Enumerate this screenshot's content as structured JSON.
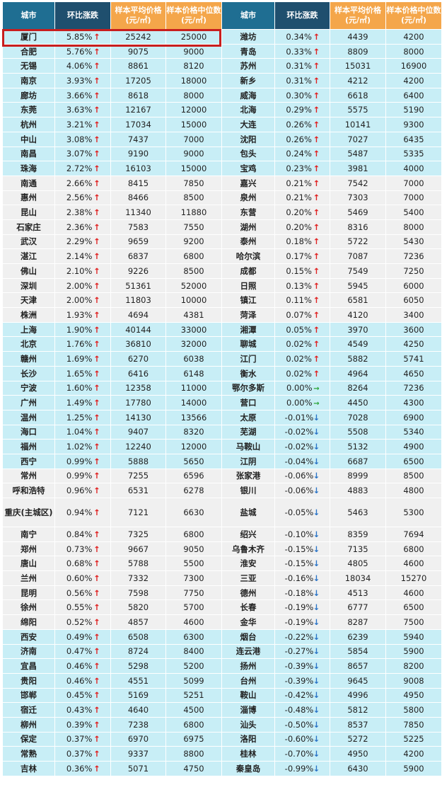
{
  "header": {
    "city": "城市",
    "change": "环比涨跌",
    "avg_price": "样本平均价格(元/㎡)",
    "median_price": "样本价格中位数(元/㎡)"
  },
  "colors": {
    "header_city": "#1f6e92",
    "header_change": "#1f4f6e",
    "header_price": "#f4a64a",
    "band_cyan": "#c8eef6",
    "band_gray": "#f0f0f0",
    "up_arrow": "#e02020",
    "down_arrow": "#2a74c7",
    "flat_arrow": "#2aa538",
    "highlight_box": "#c81e1e"
  },
  "arrows": {
    "up": "↑",
    "down": "↓",
    "flat": "→"
  },
  "highlight": {
    "row": "厦门"
  },
  "left_rows": [
    {
      "city": "厦门",
      "pct": "5.85%",
      "dir": "up",
      "avg": "25242",
      "med": "25000"
    },
    {
      "city": "合肥",
      "pct": "5.76%",
      "dir": "up",
      "avg": "9075",
      "med": "9000"
    },
    {
      "city": "无锡",
      "pct": "4.06%",
      "dir": "up",
      "avg": "8861",
      "med": "8120"
    },
    {
      "city": "南京",
      "pct": "3.93%",
      "dir": "up",
      "avg": "17205",
      "med": "18000"
    },
    {
      "city": "廊坊",
      "pct": "3.66%",
      "dir": "up",
      "avg": "8618",
      "med": "8000"
    },
    {
      "city": "东莞",
      "pct": "3.63%",
      "dir": "up",
      "avg": "12167",
      "med": "12000"
    },
    {
      "city": "杭州",
      "pct": "3.21%",
      "dir": "up",
      "avg": "17034",
      "med": "15000"
    },
    {
      "city": "中山",
      "pct": "3.08%",
      "dir": "up",
      "avg": "7437",
      "med": "7000"
    },
    {
      "city": "南昌",
      "pct": "3.07%",
      "dir": "up",
      "avg": "9190",
      "med": "9000"
    },
    {
      "city": "珠海",
      "pct": "2.72%",
      "dir": "up",
      "avg": "16103",
      "med": "15000"
    },
    {
      "city": "南通",
      "pct": "2.66%",
      "dir": "up",
      "avg": "8415",
      "med": "7850"
    },
    {
      "city": "惠州",
      "pct": "2.56%",
      "dir": "up",
      "avg": "8466",
      "med": "8500"
    },
    {
      "city": "昆山",
      "pct": "2.38%",
      "dir": "up",
      "avg": "11340",
      "med": "11880"
    },
    {
      "city": "石家庄",
      "pct": "2.36%",
      "dir": "up",
      "avg": "7583",
      "med": "7550"
    },
    {
      "city": "武汉",
      "pct": "2.29%",
      "dir": "up",
      "avg": "9659",
      "med": "9200"
    },
    {
      "city": "湛江",
      "pct": "2.14%",
      "dir": "up",
      "avg": "6837",
      "med": "6800"
    },
    {
      "city": "佛山",
      "pct": "2.10%",
      "dir": "up",
      "avg": "9226",
      "med": "8500"
    },
    {
      "city": "深圳",
      "pct": "2.00%",
      "dir": "up",
      "avg": "51361",
      "med": "52000"
    },
    {
      "city": "天津",
      "pct": "2.00%",
      "dir": "up",
      "avg": "11803",
      "med": "10000"
    },
    {
      "city": "株洲",
      "pct": "1.93%",
      "dir": "up",
      "avg": "4694",
      "med": "4381"
    },
    {
      "city": "上海",
      "pct": "1.90%",
      "dir": "up",
      "avg": "40144",
      "med": "33000"
    },
    {
      "city": "北京",
      "pct": "1.76%",
      "dir": "up",
      "avg": "36810",
      "med": "32000"
    },
    {
      "city": "赣州",
      "pct": "1.69%",
      "dir": "up",
      "avg": "6270",
      "med": "6038"
    },
    {
      "city": "长沙",
      "pct": "1.65%",
      "dir": "up",
      "avg": "6416",
      "med": "6148"
    },
    {
      "city": "宁波",
      "pct": "1.60%",
      "dir": "up",
      "avg": "12358",
      "med": "11000"
    },
    {
      "city": "广州",
      "pct": "1.49%",
      "dir": "up",
      "avg": "17780",
      "med": "14000"
    },
    {
      "city": "温州",
      "pct": "1.25%",
      "dir": "up",
      "avg": "14130",
      "med": "13566"
    },
    {
      "city": "海口",
      "pct": "1.04%",
      "dir": "up",
      "avg": "9407",
      "med": "8320"
    },
    {
      "city": "福州",
      "pct": "1.02%",
      "dir": "up",
      "avg": "12240",
      "med": "12000"
    },
    {
      "city": "西宁",
      "pct": "0.99%",
      "dir": "up",
      "avg": "5888",
      "med": "5650"
    },
    {
      "city": "常州",
      "pct": "0.99%",
      "dir": "up",
      "avg": "7255",
      "med": "6596"
    },
    {
      "city": "呼和浩特",
      "pct": "0.96%",
      "dir": "up",
      "avg": "6531",
      "med": "6278"
    },
    {
      "city": "重庆(主城区)",
      "pct": "0.94%",
      "dir": "up",
      "avg": "7121",
      "med": "6630"
    },
    {
      "city": "南宁",
      "pct": "0.84%",
      "dir": "up",
      "avg": "7325",
      "med": "6800"
    },
    {
      "city": "郑州",
      "pct": "0.73%",
      "dir": "up",
      "avg": "9667",
      "med": "9050"
    },
    {
      "city": "唐山",
      "pct": "0.68%",
      "dir": "up",
      "avg": "5788",
      "med": "5500"
    },
    {
      "city": "兰州",
      "pct": "0.60%",
      "dir": "up",
      "avg": "7332",
      "med": "7300"
    },
    {
      "city": "昆明",
      "pct": "0.56%",
      "dir": "up",
      "avg": "7598",
      "med": "7750"
    },
    {
      "city": "徐州",
      "pct": "0.55%",
      "dir": "up",
      "avg": "5820",
      "med": "5700"
    },
    {
      "city": "绵阳",
      "pct": "0.52%",
      "dir": "up",
      "avg": "4857",
      "med": "4600"
    },
    {
      "city": "西安",
      "pct": "0.49%",
      "dir": "up",
      "avg": "6508",
      "med": "6300"
    },
    {
      "city": "济南",
      "pct": "0.47%",
      "dir": "up",
      "avg": "8724",
      "med": "8400"
    },
    {
      "city": "宜昌",
      "pct": "0.46%",
      "dir": "up",
      "avg": "5298",
      "med": "5200"
    },
    {
      "city": "贵阳",
      "pct": "0.46%",
      "dir": "up",
      "avg": "4551",
      "med": "5099"
    },
    {
      "city": "邯郸",
      "pct": "0.45%",
      "dir": "up",
      "avg": "5169",
      "med": "5251"
    },
    {
      "city": "宿迁",
      "pct": "0.43%",
      "dir": "up",
      "avg": "4640",
      "med": "4500"
    },
    {
      "city": "柳州",
      "pct": "0.39%",
      "dir": "up",
      "avg": "7238",
      "med": "6800"
    },
    {
      "city": "保定",
      "pct": "0.37%",
      "dir": "up",
      "avg": "6970",
      "med": "6975"
    },
    {
      "city": "常熟",
      "pct": "0.37%",
      "dir": "up",
      "avg": "9337",
      "med": "8800"
    },
    {
      "city": "吉林",
      "pct": "0.36%",
      "dir": "up",
      "avg": "5071",
      "med": "4750"
    }
  ],
  "right_rows": [
    {
      "city": "潍坊",
      "pct": "0.34%",
      "dir": "up",
      "avg": "4439",
      "med": "4200"
    },
    {
      "city": "青岛",
      "pct": "0.33%",
      "dir": "up",
      "avg": "8809",
      "med": "8000"
    },
    {
      "city": "苏州",
      "pct": "0.31%",
      "dir": "up",
      "avg": "15031",
      "med": "16900"
    },
    {
      "city": "新乡",
      "pct": "0.31%",
      "dir": "up",
      "avg": "4212",
      "med": "4200"
    },
    {
      "city": "威海",
      "pct": "0.30%",
      "dir": "up",
      "avg": "6618",
      "med": "6400"
    },
    {
      "city": "北海",
      "pct": "0.29%",
      "dir": "up",
      "avg": "5575",
      "med": "5190"
    },
    {
      "city": "大连",
      "pct": "0.26%",
      "dir": "up",
      "avg": "10141",
      "med": "9300"
    },
    {
      "city": "沈阳",
      "pct": "0.26%",
      "dir": "up",
      "avg": "7027",
      "med": "6435"
    },
    {
      "city": "包头",
      "pct": "0.24%",
      "dir": "up",
      "avg": "5487",
      "med": "5335"
    },
    {
      "city": "宝鸡",
      "pct": "0.23%",
      "dir": "up",
      "avg": "3981",
      "med": "4000"
    },
    {
      "city": "嘉兴",
      "pct": "0.21%",
      "dir": "up",
      "avg": "7542",
      "med": "7000"
    },
    {
      "city": "泉州",
      "pct": "0.21%",
      "dir": "up",
      "avg": "7303",
      "med": "7000"
    },
    {
      "city": "东营",
      "pct": "0.20%",
      "dir": "up",
      "avg": "5469",
      "med": "5400"
    },
    {
      "city": "湖州",
      "pct": "0.20%",
      "dir": "up",
      "avg": "8316",
      "med": "8000"
    },
    {
      "city": "泰州",
      "pct": "0.18%",
      "dir": "up",
      "avg": "5722",
      "med": "5430"
    },
    {
      "city": "哈尔滨",
      "pct": "0.17%",
      "dir": "up",
      "avg": "7087",
      "med": "7236"
    },
    {
      "city": "成都",
      "pct": "0.15%",
      "dir": "up",
      "avg": "7549",
      "med": "7250"
    },
    {
      "city": "日照",
      "pct": "0.13%",
      "dir": "up",
      "avg": "5945",
      "med": "6000"
    },
    {
      "city": "镇江",
      "pct": "0.11%",
      "dir": "up",
      "avg": "6581",
      "med": "6050"
    },
    {
      "city": "菏泽",
      "pct": "0.07%",
      "dir": "up",
      "avg": "4120",
      "med": "3400"
    },
    {
      "city": "湘潭",
      "pct": "0.05%",
      "dir": "up",
      "avg": "3970",
      "med": "3600"
    },
    {
      "city": "聊城",
      "pct": "0.02%",
      "dir": "up",
      "avg": "4549",
      "med": "4250"
    },
    {
      "city": "江门",
      "pct": "0.02%",
      "dir": "up",
      "avg": "5882",
      "med": "5741"
    },
    {
      "city": "衡水",
      "pct": "0.02%",
      "dir": "up",
      "avg": "4964",
      "med": "4650"
    },
    {
      "city": "鄂尔多斯",
      "pct": "0.00%",
      "dir": "flat",
      "avg": "8264",
      "med": "7236"
    },
    {
      "city": "营口",
      "pct": "0.00%",
      "dir": "flat",
      "avg": "4450",
      "med": "4300"
    },
    {
      "city": "太原",
      "pct": "-0.01%",
      "dir": "down",
      "avg": "7028",
      "med": "6900"
    },
    {
      "city": "芜湖",
      "pct": "-0.02%",
      "dir": "down",
      "avg": "5508",
      "med": "5340"
    },
    {
      "city": "马鞍山",
      "pct": "-0.02%",
      "dir": "down",
      "avg": "5132",
      "med": "4900"
    },
    {
      "city": "江阴",
      "pct": "-0.04%",
      "dir": "down",
      "avg": "6687",
      "med": "6500"
    },
    {
      "city": "张家港",
      "pct": "-0.06%",
      "dir": "down",
      "avg": "8999",
      "med": "8500"
    },
    {
      "city": "银川",
      "pct": "-0.06%",
      "dir": "down",
      "avg": "4883",
      "med": "4800"
    },
    {
      "city": "盐城",
      "pct": "-0.05%",
      "dir": "down",
      "avg": "5463",
      "med": "5300"
    },
    {
      "city": "绍兴",
      "pct": "-0.10%",
      "dir": "down",
      "avg": "8359",
      "med": "7694"
    },
    {
      "city": "乌鲁木齐",
      "pct": "-0.15%",
      "dir": "down",
      "avg": "7135",
      "med": "6800"
    },
    {
      "city": "淮安",
      "pct": "-0.15%",
      "dir": "down",
      "avg": "4805",
      "med": "4600"
    },
    {
      "city": "三亚",
      "pct": "-0.16%",
      "dir": "down",
      "avg": "18034",
      "med": "15270"
    },
    {
      "city": "德州",
      "pct": "-0.18%",
      "dir": "down",
      "avg": "4513",
      "med": "4600"
    },
    {
      "city": "长春",
      "pct": "-0.19%",
      "dir": "down",
      "avg": "6777",
      "med": "6500"
    },
    {
      "city": "金华",
      "pct": "-0.19%",
      "dir": "down",
      "avg": "8287",
      "med": "7500"
    },
    {
      "city": "烟台",
      "pct": "-0.22%",
      "dir": "down",
      "avg": "6239",
      "med": "5940"
    },
    {
      "city": "连云港",
      "pct": "-0.27%",
      "dir": "down",
      "avg": "5854",
      "med": "5900"
    },
    {
      "city": "扬州",
      "pct": "-0.39%",
      "dir": "down",
      "avg": "8657",
      "med": "8200"
    },
    {
      "city": "台州",
      "pct": "-0.39%",
      "dir": "down",
      "avg": "9645",
      "med": "9008"
    },
    {
      "city": "鞍山",
      "pct": "-0.42%",
      "dir": "down",
      "avg": "4996",
      "med": "4950"
    },
    {
      "city": "淄博",
      "pct": "-0.48%",
      "dir": "down",
      "avg": "5812",
      "med": "5800"
    },
    {
      "city": "汕头",
      "pct": "-0.50%",
      "dir": "down",
      "avg": "8537",
      "med": "7850"
    },
    {
      "city": "洛阳",
      "pct": "-0.60%",
      "dir": "down",
      "avg": "5272",
      "med": "5225"
    },
    {
      "city": "桂林",
      "pct": "-0.70%",
      "dir": "down",
      "avg": "4950",
      "med": "4200"
    },
    {
      "city": "秦皇岛",
      "pct": "-0.99%",
      "dir": "down",
      "avg": "6430",
      "med": "5900"
    }
  ]
}
